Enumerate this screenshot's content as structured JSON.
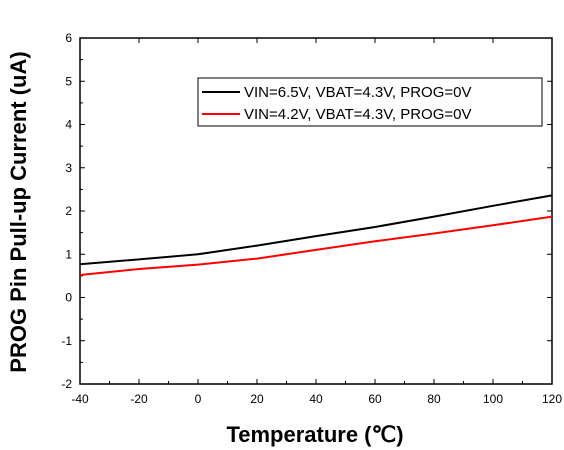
{
  "chart_data": {
    "type": "line",
    "xlabel": "Temperature (℃)",
    "ylabel": "PROG Pin Pull-up Current (uA)",
    "xlim": [
      -40,
      120
    ],
    "ylim": [
      -2,
      6
    ],
    "xticks": [
      -40,
      -20,
      0,
      20,
      40,
      60,
      80,
      100,
      120
    ],
    "yticks": [
      -2,
      -1,
      0,
      1,
      2,
      3,
      4,
      5,
      6
    ],
    "grid": false,
    "legend_position": "top-right",
    "series": [
      {
        "name": "VIN=6.5V, VBAT=4.3V, PROG=0V",
        "color": "#000000",
        "x": [
          -40,
          -20,
          0,
          20,
          40,
          60,
          80,
          100,
          120
        ],
        "y": [
          0.77,
          0.88,
          1.0,
          1.2,
          1.42,
          1.63,
          1.87,
          2.12,
          2.36
        ]
      },
      {
        "name": "VIN=4.2V, VBAT=4.3V, PROG=0V",
        "color": "#ff0000",
        "x": [
          -40,
          -20,
          0,
          20,
          40,
          60,
          80,
          100,
          120
        ],
        "y": [
          0.52,
          0.66,
          0.76,
          0.9,
          1.1,
          1.3,
          1.48,
          1.67,
          1.87
        ]
      }
    ]
  }
}
